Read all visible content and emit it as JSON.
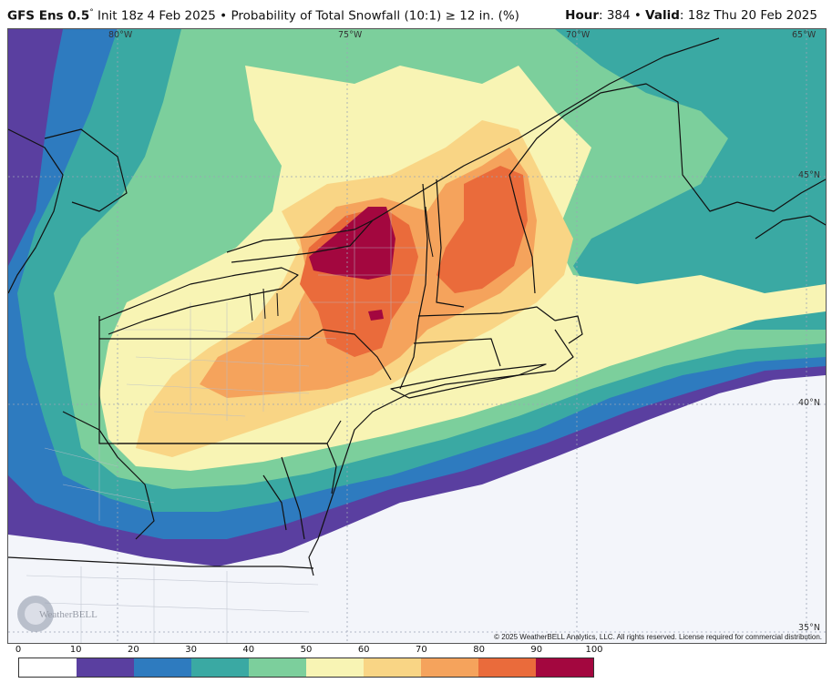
{
  "header": {
    "model": "GFS Ens 0.5",
    "model_degree": "°",
    "init_text": "Init 18z 4 Feb 2025",
    "bullet": "•",
    "product": "Probability of Total Snowfall (10:1)",
    "threshold": "≥ 12 in. (%)",
    "hour_label": "Hour",
    "hour_value": ": 384",
    "valid_label": "Valid",
    "valid_value": ": 18z Thu 20 Feb 2025"
  },
  "map": {
    "lon_labels": [
      "80°W",
      "75°W",
      "70°W",
      "65°W"
    ],
    "lat_labels": [
      "45°N",
      "40°N",
      "35°N"
    ],
    "copyright": "© 2025 WeatherBELL Analytics, LLC. All rights reserved. License required for commercial distribution.",
    "logo_text": "WeatherBELL"
  },
  "legend": {
    "ticks": [
      "0",
      "10",
      "20",
      "30",
      "40",
      "50",
      "60",
      "70",
      "80",
      "90",
      "100"
    ],
    "colors": [
      "#ffffff",
      "#5a3fa0",
      "#2e7bbf",
      "#3aa9a3",
      "#7ccf9c",
      "#f8f4b4",
      "#f9d585",
      "#f5a35c",
      "#ea6b3b",
      "#a3073f"
    ]
  }
}
